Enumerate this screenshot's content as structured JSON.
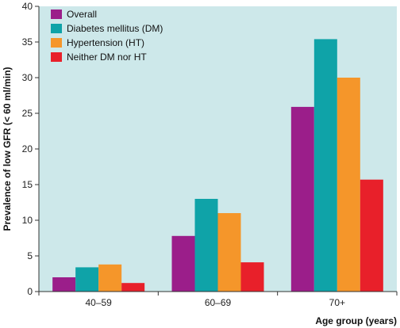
{
  "chart_data": {
    "type": "bar",
    "categories": [
      "40–59",
      "60–69",
      "70+"
    ],
    "series": [
      {
        "name": "Overall",
        "color": "#9b1e8a",
        "values": [
          2.0,
          7.8,
          25.9
        ]
      },
      {
        "name": "Diabetes mellitus (DM)",
        "color": "#0fa3a8",
        "values": [
          3.4,
          13.0,
          35.4
        ]
      },
      {
        "name": "Hypertension (HT)",
        "color": "#f5962a",
        "values": [
          3.8,
          11.0,
          30.0
        ]
      },
      {
        "name": "Neither DM nor HT",
        "color": "#e8202a",
        "values": [
          1.2,
          4.1,
          15.7
        ]
      }
    ],
    "xlabel": "Age group (years)",
    "ylabel": "Prevalence of low GFR (< 60 ml/min)",
    "ylim": [
      0,
      40
    ],
    "yticks": [
      0,
      5,
      10,
      15,
      20,
      25,
      30,
      35,
      40
    ],
    "grid": false,
    "legend_position": "top-left",
    "plot_background": "#cde8ea"
  }
}
